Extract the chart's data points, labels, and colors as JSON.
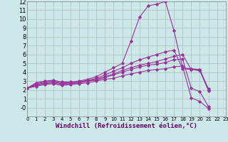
{
  "bg_color": "#cce8e8",
  "line_color": "#993399",
  "grid_color": "#aabbbb",
  "xlabel": "Windchill (Refroidissement éolien,°C)",
  "xlim": [
    0,
    23
  ],
  "ylim": [
    -1,
    12
  ],
  "xticks": [
    0,
    1,
    2,
    3,
    4,
    5,
    6,
    7,
    8,
    9,
    10,
    11,
    12,
    13,
    14,
    15,
    16,
    17,
    18,
    19,
    20,
    21,
    22,
    23
  ],
  "yticks": [
    0,
    1,
    2,
    3,
    4,
    5,
    6,
    7,
    8,
    9,
    10,
    11,
    12
  ],
  "ytick_labels": [
    "-0",
    "1",
    "2",
    "3",
    "4",
    "5",
    "6",
    "7",
    "8",
    "9",
    "10",
    "11",
    "12"
  ],
  "series": [
    {
      "x": [
        0,
        1,
        2,
        3,
        4,
        5,
        6,
        7,
        8,
        9,
        10,
        11,
        12,
        13,
        14,
        15,
        16,
        17,
        18,
        19,
        20,
        21
      ],
      "y": [
        2.2,
        2.8,
        3.0,
        3.1,
        2.9,
        2.9,
        3.0,
        3.2,
        3.5,
        4.0,
        4.5,
        5.0,
        7.5,
        10.2,
        11.5,
        11.7,
        12.0,
        8.7,
        4.5,
        4.4,
        4.3,
        2.1
      ]
    },
    {
      "x": [
        0,
        1,
        2,
        3,
        4,
        5,
        6,
        7,
        8,
        9,
        10,
        11,
        12,
        13,
        14,
        15,
        16,
        17,
        18,
        19,
        20,
        21
      ],
      "y": [
        2.2,
        2.7,
        2.9,
        3.0,
        2.8,
        2.8,
        2.9,
        3.1,
        3.3,
        3.7,
        4.1,
        4.5,
        5.0,
        5.4,
        5.7,
        6.0,
        6.3,
        6.5,
        4.4,
        4.3,
        4.2,
        2.0
      ]
    },
    {
      "x": [
        0,
        1,
        2,
        3,
        4,
        5,
        6,
        7,
        8,
        9,
        10,
        11,
        12,
        13,
        14,
        15,
        16,
        17,
        18,
        19,
        20,
        21
      ],
      "y": [
        2.2,
        2.6,
        2.8,
        2.9,
        2.7,
        2.8,
        2.8,
        3.0,
        3.2,
        3.5,
        3.8,
        4.2,
        4.5,
        4.8,
        5.0,
        5.2,
        5.5,
        5.8,
        6.0,
        4.3,
        4.2,
        1.9
      ]
    },
    {
      "x": [
        0,
        1,
        2,
        3,
        4,
        5,
        6,
        7,
        8,
        9,
        10,
        11,
        12,
        13,
        14,
        15,
        16,
        17,
        18,
        19,
        20,
        21
      ],
      "y": [
        2.2,
        2.5,
        2.7,
        2.8,
        2.6,
        2.7,
        2.8,
        3.0,
        3.1,
        3.4,
        3.7,
        4.0,
        4.3,
        4.6,
        4.8,
        4.9,
        5.1,
        5.4,
        5.5,
        2.2,
        1.8,
        0.1
      ]
    },
    {
      "x": [
        0,
        1,
        2,
        3,
        4,
        5,
        6,
        7,
        8,
        9,
        10,
        11,
        12,
        13,
        14,
        15,
        16,
        17,
        18,
        19,
        20,
        21
      ],
      "y": [
        2.2,
        2.4,
        2.6,
        2.7,
        2.5,
        2.6,
        2.7,
        2.8,
        3.0,
        3.2,
        3.3,
        3.6,
        3.8,
        4.0,
        4.2,
        4.3,
        4.4,
        4.6,
        4.7,
        1.1,
        0.7,
        -0.1
      ]
    }
  ]
}
